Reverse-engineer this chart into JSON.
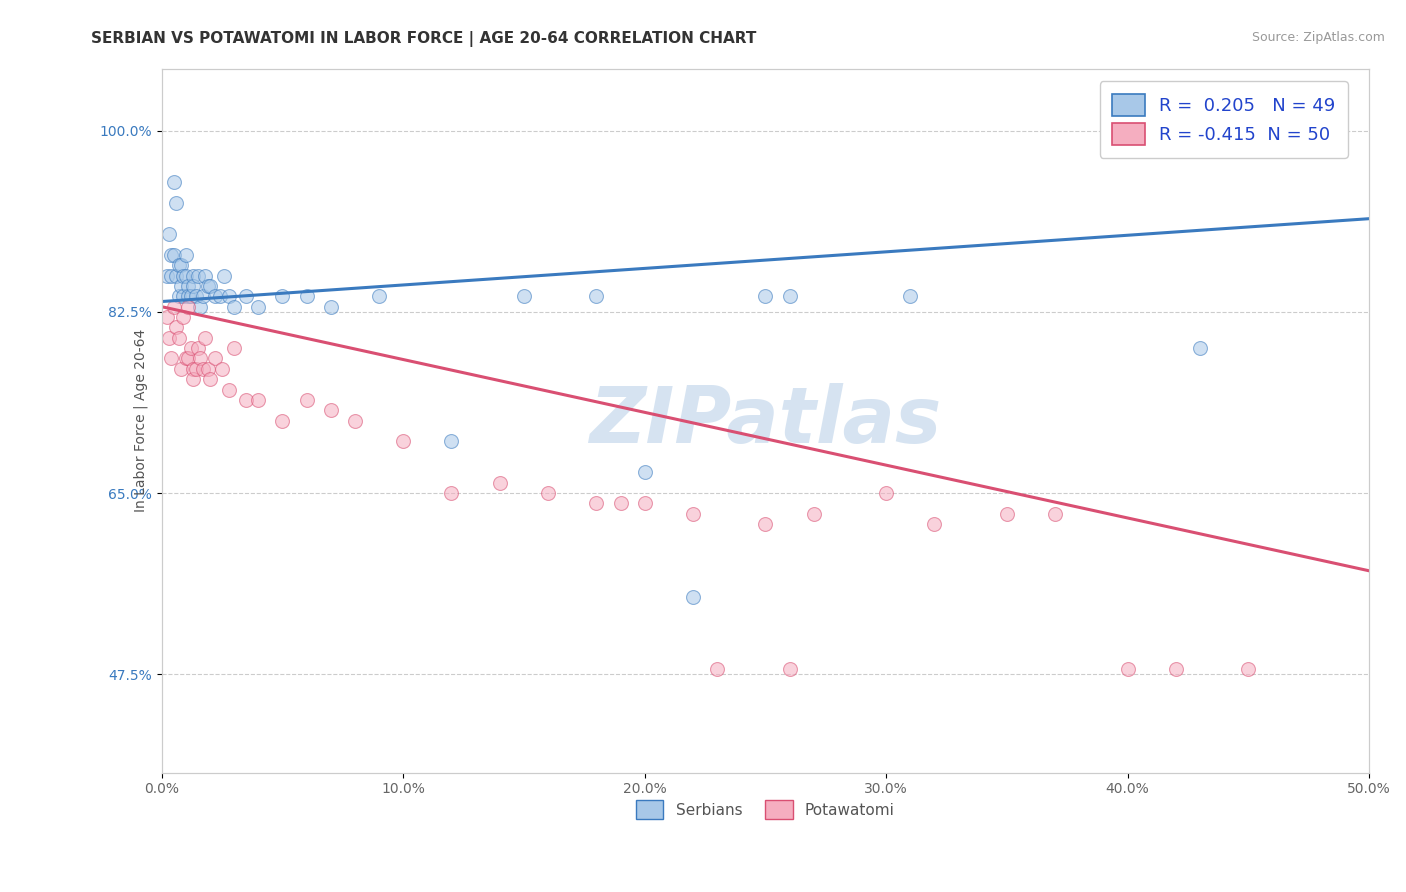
{
  "title": "SERBIAN VS POTAWATOMI IN LABOR FORCE | AGE 20-64 CORRELATION CHART",
  "source_text": "Source: ZipAtlas.com",
  "ylabel": "In Labor Force | Age 20-64",
  "xlim": [
    0.0,
    0.5
  ],
  "ylim": [
    0.38,
    1.06
  ],
  "xtick_labels": [
    "0.0%",
    "10.0%",
    "20.0%",
    "30.0%",
    "40.0%",
    "50.0%"
  ],
  "xtick_values": [
    0.0,
    0.1,
    0.2,
    0.3,
    0.4,
    0.5
  ],
  "ytick_labels": [
    "47.5%",
    "65.0%",
    "82.5%",
    "100.0%"
  ],
  "ytick_values": [
    0.475,
    0.65,
    0.825,
    1.0
  ],
  "legend_line1": "R =  0.205   N = 49",
  "legend_line2": "R = -0.415  N = 50",
  "serbian_color": "#a8c8e8",
  "potawatomi_color": "#f5aec0",
  "serbian_line_color": "#3a7abf",
  "potawatomi_line_color": "#d94f72",
  "background_color": "#ffffff",
  "watermark_text": "ZIPatlas",
  "watermark_color": "#c5d8ec",
  "serbian_x": [
    0.002,
    0.003,
    0.004,
    0.004,
    0.005,
    0.005,
    0.006,
    0.006,
    0.007,
    0.007,
    0.008,
    0.008,
    0.009,
    0.009,
    0.01,
    0.01,
    0.011,
    0.011,
    0.012,
    0.013,
    0.013,
    0.014,
    0.015,
    0.016,
    0.017,
    0.018,
    0.019,
    0.02,
    0.022,
    0.024,
    0.026,
    0.028,
    0.03,
    0.035,
    0.04,
    0.05,
    0.06,
    0.07,
    0.09,
    0.12,
    0.15,
    0.18,
    0.22,
    0.26,
    0.31,
    0.2,
    0.25,
    0.43,
    0.43
  ],
  "serbian_y": [
    0.86,
    0.9,
    0.88,
    0.86,
    0.95,
    0.88,
    0.93,
    0.86,
    0.87,
    0.84,
    0.85,
    0.87,
    0.86,
    0.84,
    0.86,
    0.88,
    0.85,
    0.84,
    0.84,
    0.86,
    0.85,
    0.84,
    0.86,
    0.83,
    0.84,
    0.86,
    0.85,
    0.85,
    0.84,
    0.84,
    0.86,
    0.84,
    0.83,
    0.84,
    0.83,
    0.84,
    0.84,
    0.83,
    0.84,
    0.7,
    0.84,
    0.84,
    0.55,
    0.84,
    0.84,
    0.67,
    0.84,
    0.79,
    1.0
  ],
  "potawatomi_x": [
    0.002,
    0.003,
    0.004,
    0.005,
    0.006,
    0.007,
    0.008,
    0.009,
    0.01,
    0.011,
    0.011,
    0.012,
    0.013,
    0.013,
    0.014,
    0.015,
    0.016,
    0.017,
    0.018,
    0.019,
    0.02,
    0.022,
    0.025,
    0.028,
    0.03,
    0.035,
    0.04,
    0.05,
    0.06,
    0.07,
    0.08,
    0.1,
    0.12,
    0.14,
    0.16,
    0.19,
    0.22,
    0.25,
    0.27,
    0.3,
    0.32,
    0.35,
    0.37,
    0.4,
    0.42,
    0.45,
    0.18,
    0.2,
    0.23,
    0.26
  ],
  "potawatomi_y": [
    0.82,
    0.8,
    0.78,
    0.83,
    0.81,
    0.8,
    0.77,
    0.82,
    0.78,
    0.78,
    0.83,
    0.79,
    0.77,
    0.76,
    0.77,
    0.79,
    0.78,
    0.77,
    0.8,
    0.77,
    0.76,
    0.78,
    0.77,
    0.75,
    0.79,
    0.74,
    0.74,
    0.72,
    0.74,
    0.73,
    0.72,
    0.7,
    0.65,
    0.66,
    0.65,
    0.64,
    0.63,
    0.62,
    0.63,
    0.65,
    0.62,
    0.63,
    0.63,
    0.48,
    0.48,
    0.48,
    0.64,
    0.64,
    0.48,
    0.48
  ],
  "title_fontsize": 11,
  "axis_label_fontsize": 10,
  "tick_fontsize": 10,
  "legend_fontsize": 13,
  "marker_size": 100,
  "marker_alpha": 0.55,
  "serbian_blue_legend": "#a8c8e8",
  "potawatomi_pink_legend": "#f5aec0"
}
